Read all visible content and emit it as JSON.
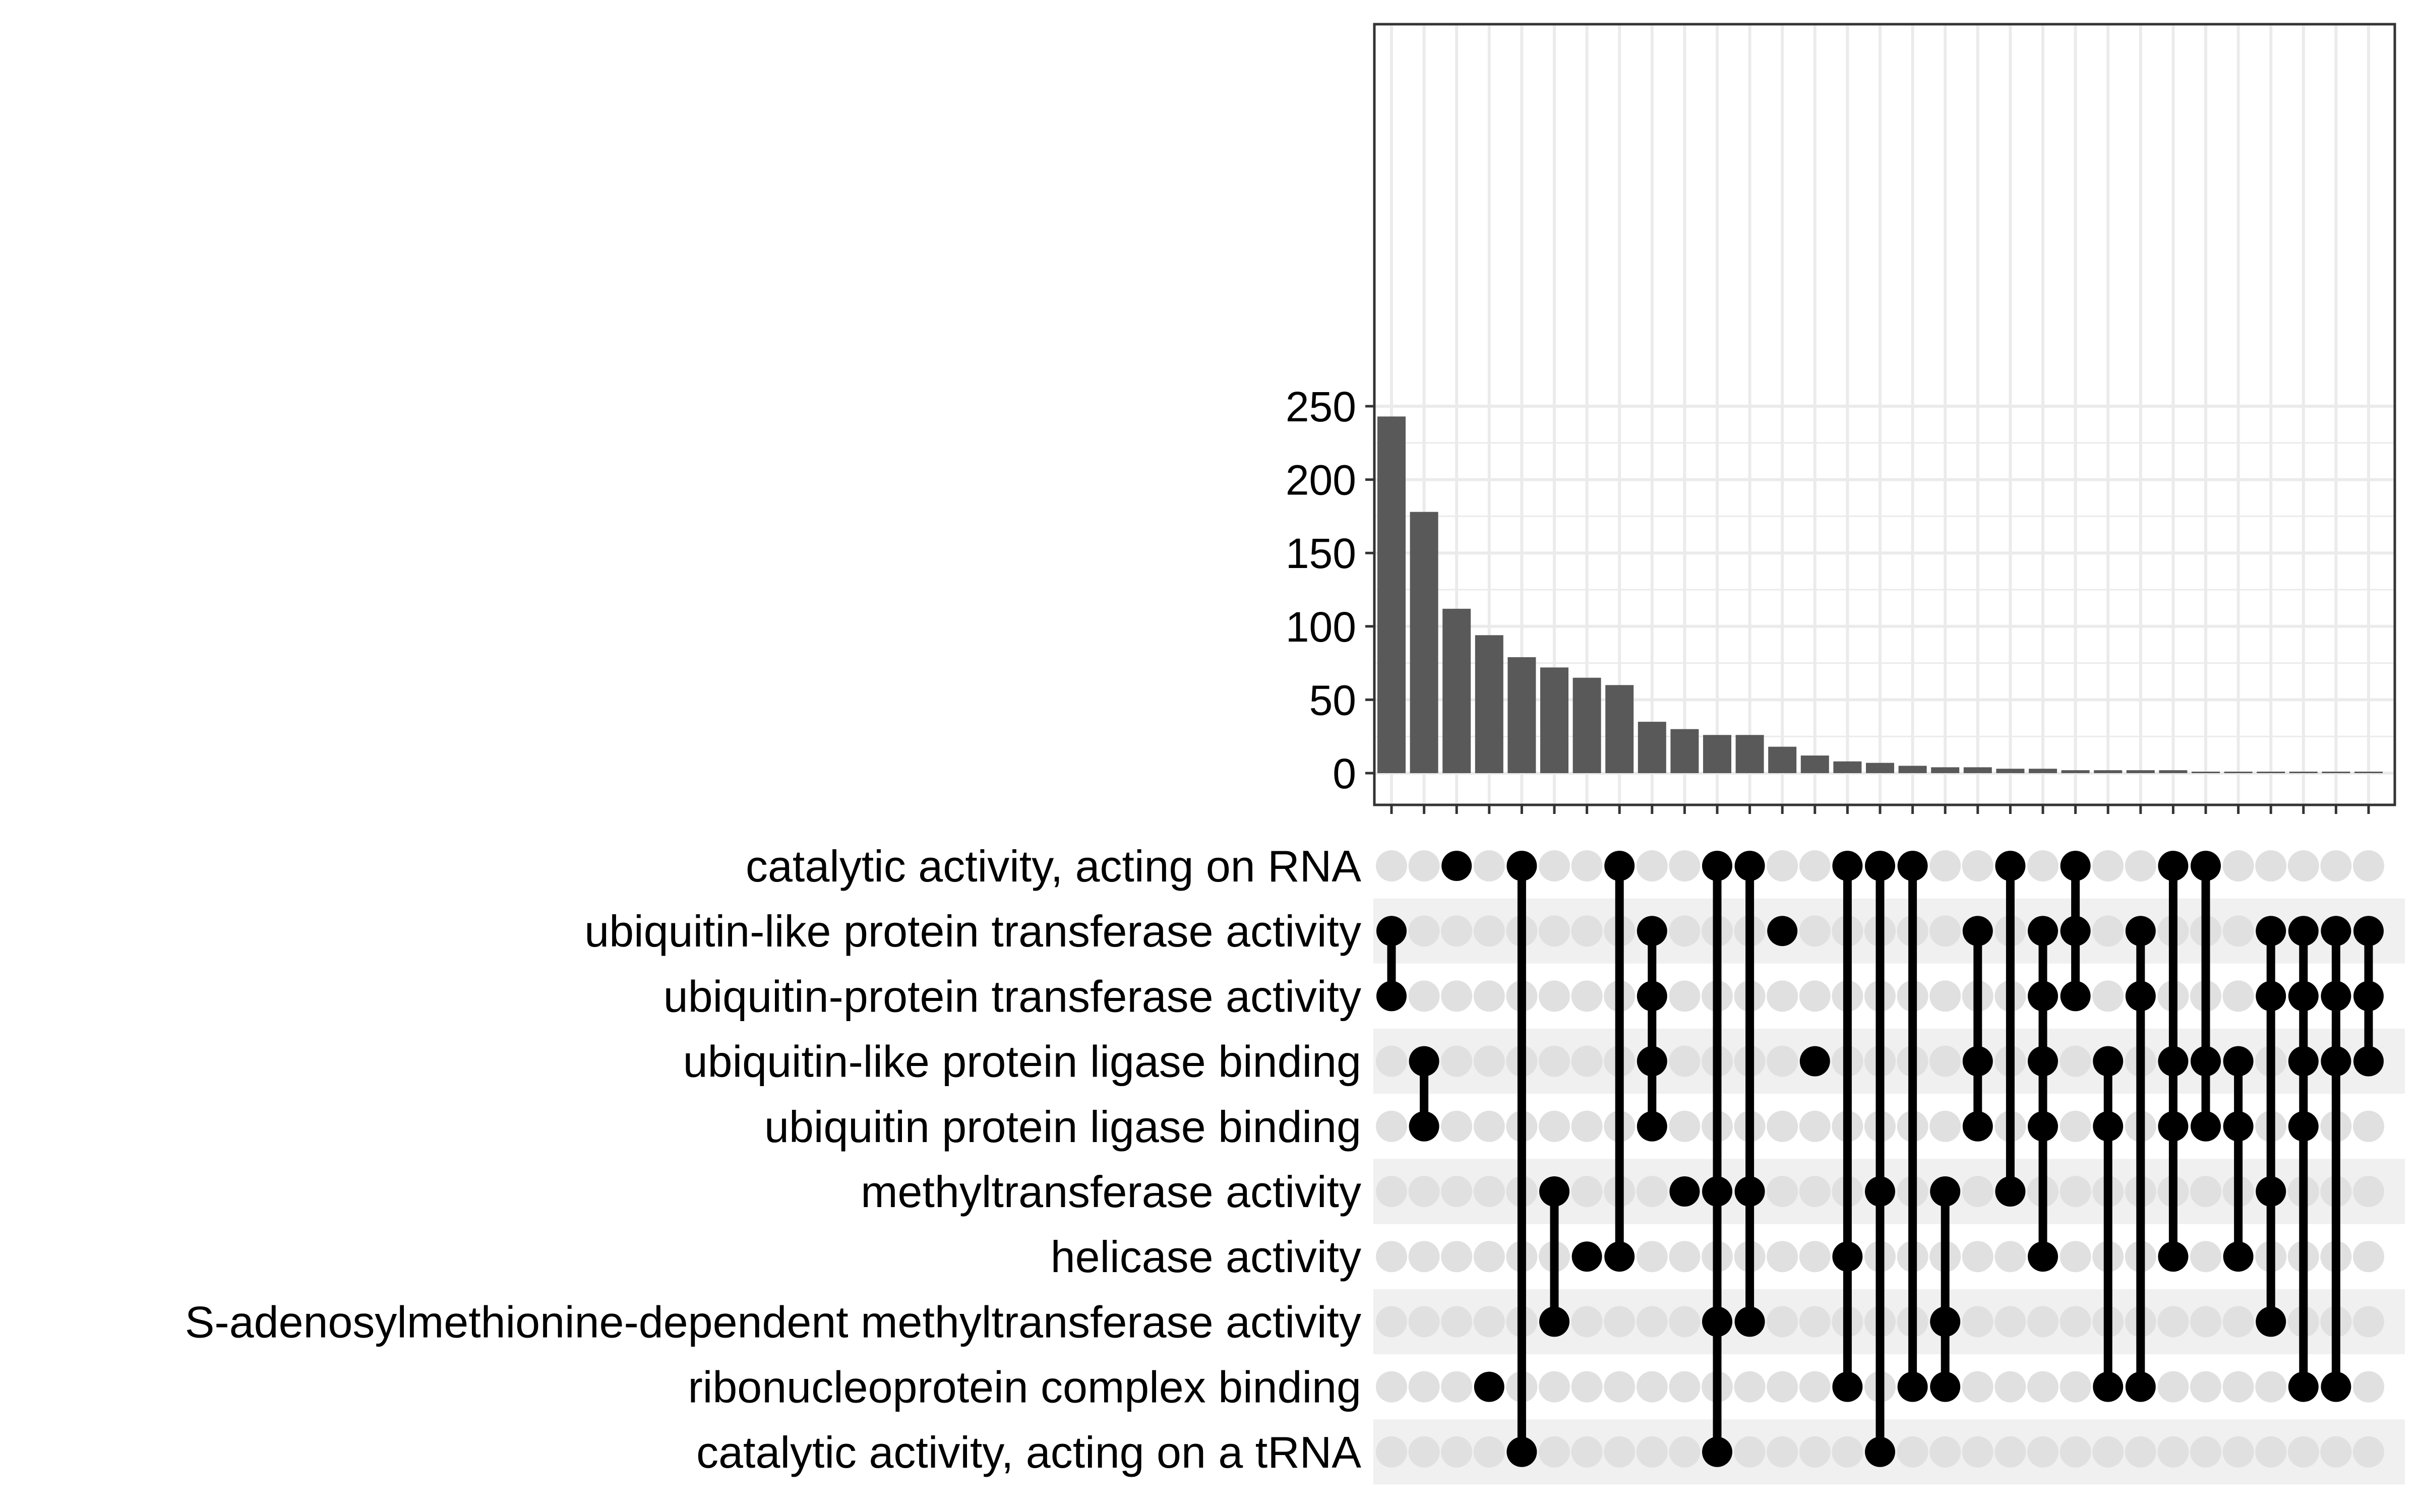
{
  "chart_data": {
    "type": "upset",
    "title": "",
    "xlabel": "",
    "ylabel": "",
    "ylim": [
      0,
      255
    ],
    "y_ticks": [
      0,
      50,
      100,
      150,
      200,
      250
    ],
    "grid": true,
    "colors": {
      "bar": "#595959",
      "dot_active": "#000000",
      "dot_inactive": "#e0e0e0",
      "stripe": "#f0f0f0",
      "grid": "#ebebeb",
      "axis": "#333333"
    },
    "sets": [
      "catalytic activity, acting on RNA",
      "ubiquitin-like protein transferase activity",
      "ubiquitin-protein transferase activity",
      "ubiquitin-like protein ligase binding",
      "ubiquitin protein ligase binding",
      "methyltransferase activity",
      "helicase activity",
      "S-adenosylmethionine-dependent methyltransferase activity",
      "ribonucleoprotein complex binding",
      "catalytic activity, acting on a tRNA"
    ],
    "intersections": [
      {
        "value": 243,
        "sets": [
          1,
          2
        ]
      },
      {
        "value": 178,
        "sets": [
          3,
          4
        ]
      },
      {
        "value": 112,
        "sets": [
          0
        ]
      },
      {
        "value": 94,
        "sets": [
          8
        ]
      },
      {
        "value": 79,
        "sets": [
          0,
          9
        ]
      },
      {
        "value": 72,
        "sets": [
          5,
          7
        ]
      },
      {
        "value": 65,
        "sets": [
          6
        ]
      },
      {
        "value": 60,
        "sets": [
          0,
          6
        ]
      },
      {
        "value": 35,
        "sets": [
          1,
          2,
          3,
          4
        ]
      },
      {
        "value": 30,
        "sets": [
          5
        ]
      },
      {
        "value": 26,
        "sets": [
          0,
          5,
          7,
          9
        ]
      },
      {
        "value": 26,
        "sets": [
          0,
          5,
          7
        ]
      },
      {
        "value": 18,
        "sets": [
          1
        ]
      },
      {
        "value": 12,
        "sets": [
          3
        ]
      },
      {
        "value": 8,
        "sets": [
          0,
          6,
          8
        ]
      },
      {
        "value": 7,
        "sets": [
          0,
          5,
          9
        ]
      },
      {
        "value": 5,
        "sets": [
          0,
          8
        ]
      },
      {
        "value": 4,
        "sets": [
          5,
          7,
          8
        ]
      },
      {
        "value": 4,
        "sets": [
          1,
          3,
          4
        ]
      },
      {
        "value": 3,
        "sets": [
          0,
          5
        ]
      },
      {
        "value": 3,
        "sets": [
          1,
          2,
          3,
          4,
          6
        ]
      },
      {
        "value": 2,
        "sets": [
          0,
          1,
          2
        ]
      },
      {
        "value": 2,
        "sets": [
          3,
          4,
          8
        ]
      },
      {
        "value": 2,
        "sets": [
          1,
          2,
          8
        ]
      },
      {
        "value": 2,
        "sets": [
          0,
          3,
          4,
          6
        ]
      },
      {
        "value": 1,
        "sets": [
          0,
          3,
          4
        ]
      },
      {
        "value": 1,
        "sets": [
          3,
          4,
          6
        ]
      },
      {
        "value": 1,
        "sets": [
          1,
          2,
          5,
          7
        ]
      },
      {
        "value": 1,
        "sets": [
          1,
          2,
          3,
          4,
          8
        ]
      },
      {
        "value": 1,
        "sets": [
          1,
          2,
          3,
          8
        ]
      },
      {
        "value": 1,
        "sets": [
          1,
          2,
          3
        ]
      }
    ]
  }
}
